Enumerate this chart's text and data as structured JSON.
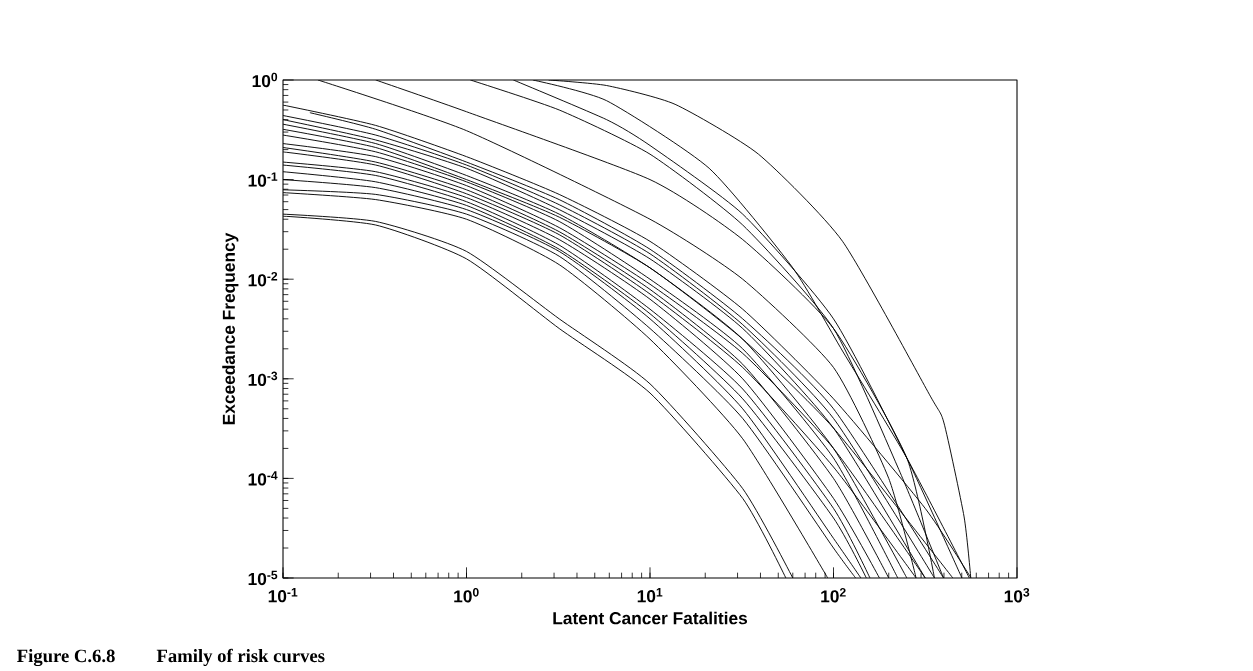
{
  "chart_data": {
    "type": "line",
    "xlabel": "Latent Cancer Fatalities",
    "ylabel": "Exceedance Frequency",
    "annotations": [
      "Figure C.6.8",
      "Family of risk curves"
    ],
    "log": "xy",
    "marker": "none",
    "line_style": "solid",
    "xlim": [
      0.1,
      1000
    ],
    "ylim": [
      1e-05,
      1
    ],
    "xticks": [
      {
        "value": 0.1,
        "label": "10$^{-1}$"
      },
      {
        "value": 1,
        "label": "10$^{0}$"
      },
      {
        "value": 10,
        "label": "10$^{1}$"
      },
      {
        "value": 100,
        "label": "10$^{2}$"
      },
      {
        "value": 1000,
        "label": "10$^{3}$"
      }
    ],
    "yticks": [
      {
        "value": 1e-05,
        "label": "10$^{-5}$"
      },
      {
        "value": 0.0001,
        "label": "10$^{-4}$"
      },
      {
        "value": 0.001,
        "label": "10$^{-3}$"
      },
      {
        "value": 0.01,
        "label": "10$^{-2}$"
      },
      {
        "value": 0.1,
        "label": "10$^{-1}$"
      },
      {
        "value": 1,
        "label": "10$^{0}$"
      }
    ],
    "series": [
      {
        "color": "#000000",
        "x": [
          2.8,
          5.8,
          13.7,
          39,
          112,
          337,
          400,
          515,
          560
        ],
        "values": [
          1,
          0.88,
          0.57,
          0.18,
          0.024,
          0.00067,
          0.00036,
          4.1e-05,
          1e-05
        ]
      },
      {
        "color": "#000000",
        "x": [
          0.155,
          1,
          10,
          32,
          100,
          200,
          282
        ],
        "values": [
          1,
          0.31,
          0.04,
          0.01,
          0.0013,
          0.0001,
          1e-05
        ]
      },
      {
        "color": "#000000",
        "x": [
          0.32,
          1,
          10,
          32,
          100,
          251,
          355
        ],
        "values": [
          1,
          0.48,
          0.1,
          0.025,
          0.0032,
          0.00016,
          1e-05
        ]
      },
      {
        "color": "#000000",
        "x": [
          1.05,
          3.2,
          10,
          32,
          100,
          224,
          398
        ],
        "values": [
          1,
          0.5,
          0.18,
          0.035,
          0.0032,
          0.00013,
          1e-05
        ]
      },
      {
        "color": "#000000",
        "x": [
          1.8,
          5.8,
          10,
          32,
          100,
          251,
          501
        ],
        "values": [
          1,
          0.4,
          0.22,
          0.045,
          0.004,
          0.00016,
          1e-05
        ]
      },
      {
        "color": "#000000",
        "x": [
          2.3,
          5.8,
          21,
          60,
          112,
          251,
          550
        ],
        "values": [
          1,
          0.62,
          0.13,
          0.013,
          0.0019,
          0.00016,
          1e-05
        ]
      },
      {
        "color": "#000000",
        "x": [
          0.1,
          0.32,
          1,
          3.2,
          10,
          32,
          100,
          316,
          562
        ],
        "values": [
          0.56,
          0.35,
          0.17,
          0.071,
          0.024,
          0.005,
          0.00063,
          5e-05,
          1e-05
        ]
      },
      {
        "color": "#000000",
        "x": [
          0.14,
          0.32,
          1,
          3.2,
          10,
          32,
          100,
          398
        ],
        "values": [
          0.47,
          0.32,
          0.15,
          0.063,
          0.02,
          0.004,
          0.0005,
          1e-05
        ]
      },
      {
        "color": "#000000",
        "x": [
          0.1,
          0.32,
          1,
          3.2,
          10,
          32,
          100,
          355
        ],
        "values": [
          0.44,
          0.28,
          0.14,
          0.056,
          0.018,
          0.0035,
          0.0004,
          1e-05
        ]
      },
      {
        "color": "#000000",
        "x": [
          0.1,
          0.32,
          1,
          3.2,
          10,
          32,
          100,
          316
        ],
        "values": [
          0.4,
          0.25,
          0.13,
          0.05,
          0.016,
          0.0032,
          0.00032,
          1e-05
        ]
      },
      {
        "color": "#000000",
        "x": [
          0.1,
          0.32,
          1,
          3.2,
          10,
          32,
          100,
          251
        ],
        "values": [
          0.36,
          0.23,
          0.11,
          0.045,
          0.013,
          0.0025,
          0.0002,
          1e-05
        ]
      },
      {
        "color": "#000000",
        "x": [
          0.1,
          0.32,
          1,
          3.2,
          10,
          32,
          100,
          447
        ],
        "values": [
          0.32,
          0.21,
          0.1,
          0.042,
          0.013,
          0.0025,
          0.00032,
          1e-05
        ]
      },
      {
        "color": "#000000",
        "x": [
          0.1,
          0.32,
          1,
          3.2,
          10,
          32,
          100,
          224
        ],
        "values": [
          0.28,
          0.19,
          0.095,
          0.038,
          0.01,
          0.002,
          0.00016,
          1e-05
        ]
      },
      {
        "color": "#000000",
        "x": [
          0.1,
          0.32,
          1,
          3.2,
          10,
          32,
          100,
          316
        ],
        "values": [
          0.23,
          0.17,
          0.087,
          0.033,
          0.0089,
          0.0018,
          0.0002,
          1e-05
        ]
      },
      {
        "color": "#000000",
        "x": [
          0.1,
          0.32,
          1,
          3.2,
          10,
          32,
          100,
          200
        ],
        "values": [
          0.21,
          0.15,
          0.079,
          0.03,
          0.0079,
          0.0014,
          0.0001,
          1e-05
        ]
      },
      {
        "color": "#000000",
        "x": [
          0.1,
          0.32,
          1,
          3.2,
          10,
          32,
          100,
          282
        ],
        "values": [
          0.19,
          0.14,
          0.072,
          0.028,
          0.0071,
          0.0013,
          0.00013,
          1e-05
        ]
      },
      {
        "color": "#000000",
        "x": [
          0.1,
          0.32,
          1,
          3.2,
          10,
          32,
          100,
          178
        ],
        "values": [
          0.15,
          0.12,
          0.066,
          0.025,
          0.0063,
          0.001,
          6.3e-05,
          1e-05
        ]
      },
      {
        "color": "#000000",
        "x": [
          0.1,
          0.32,
          1,
          3.2,
          10,
          32,
          100,
          158
        ],
        "values": [
          0.14,
          0.11,
          0.06,
          0.022,
          0.005,
          0.00079,
          5e-05,
          1e-05
        ]
      },
      {
        "color": "#000000",
        "x": [
          0.1,
          0.32,
          1,
          3.2,
          10,
          32,
          100,
          151
        ],
        "values": [
          0.12,
          0.095,
          0.055,
          0.02,
          0.0045,
          0.00063,
          4e-05,
          1e-05
        ]
      },
      {
        "color": "#000000",
        "x": [
          0.1,
          0.32,
          1,
          3.2,
          10,
          32,
          100,
          141
        ],
        "values": [
          0.1,
          0.083,
          0.05,
          0.019,
          0.004,
          0.0005,
          2.5e-05,
          1e-05
        ]
      },
      {
        "color": "#000000",
        "x": [
          0.1,
          0.32,
          1,
          3.2,
          10,
          32,
          100,
          132
        ],
        "values": [
          0.079,
          0.071,
          0.045,
          0.017,
          0.0032,
          0.0004,
          2e-05,
          1e-05
        ]
      },
      {
        "color": "#000000",
        "x": [
          0.1,
          0.32,
          1,
          3.2,
          10,
          32,
          93
        ],
        "values": [
          0.074,
          0.063,
          0.04,
          0.014,
          0.0025,
          0.00025,
          1e-05
        ]
      },
      {
        "color": "#000000",
        "x": [
          0.1,
          0.32,
          1,
          3.2,
          10,
          32,
          60
        ],
        "values": [
          0.045,
          0.038,
          0.019,
          0.004,
          0.00089,
          7.9e-05,
          1e-05
        ]
      },
      {
        "color": "#000000",
        "x": [
          0.1,
          0.32,
          1,
          3.2,
          10,
          32,
          55
        ],
        "values": [
          0.043,
          0.035,
          0.016,
          0.0032,
          0.00072,
          6.3e-05,
          1e-05
        ]
      }
    ]
  }
}
